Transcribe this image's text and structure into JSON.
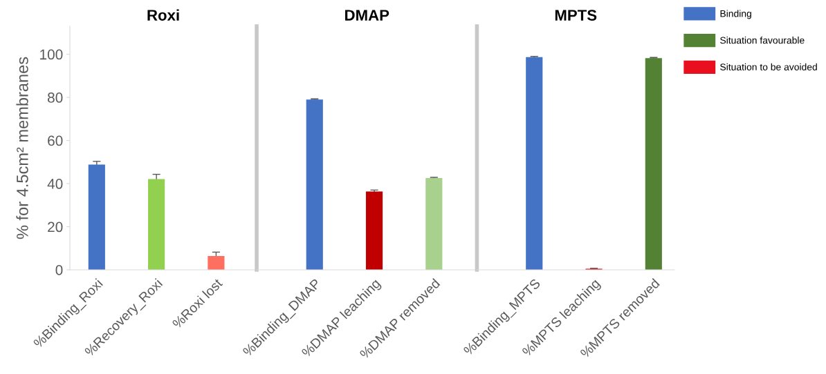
{
  "chart_data": [
    {
      "type": "bar",
      "title": "Roxi",
      "ylabel": "% for 4.5cm² membranes",
      "categories": [
        "%Binding_Roxi",
        "%Recovery_Roxi",
        "%Roxi lost"
      ],
      "ylim": [
        0,
        113
      ],
      "yticks": [
        0,
        20,
        40,
        60,
        80,
        100
      ],
      "grid": false,
      "legend": false,
      "series": [
        {
          "color": "#4472c4",
          "values": [
            48.8,
            null,
            null
          ],
          "errors": [
            1.5,
            null,
            null
          ]
        },
        {
          "color": "#92d050",
          "values": [
            null,
            42.1,
            null
          ],
          "errors": [
            null,
            2.2,
            null
          ]
        },
        {
          "color": "#ff6f61",
          "values": [
            null,
            null,
            6.4
          ],
          "errors": [
            null,
            null,
            1.8
          ]
        }
      ]
    },
    {
      "type": "bar",
      "title": "DMAP",
      "categories": [
        "%Binding_DMAP",
        "%DMAP leaching",
        "%DMAP removed"
      ],
      "ylim": [
        0,
        113
      ],
      "yticks": [
        0,
        20,
        40,
        60,
        80,
        100
      ],
      "tick_labels": "x",
      "grid": false,
      "legend": false,
      "series": [
        {
          "color": "#4472c4",
          "values": [
            79.0,
            null,
            null
          ],
          "errors": [
            0.3,
            null,
            null
          ]
        },
        {
          "color": "#a9d18e",
          "values": [
            null,
            null,
            42.6
          ],
          "errors": [
            null,
            null,
            0.3
          ]
        },
        {
          "color": "#c00000",
          "values": [
            null,
            36.3,
            null
          ],
          "errors": [
            null,
            0.7,
            null
          ]
        }
      ]
    },
    {
      "type": "bar",
      "title": "MPTS",
      "categories": [
        "%Binding_MPTS",
        "%MPTS leaching",
        "%MPTS removed"
      ],
      "ylim": [
        0,
        113
      ],
      "yticks": [
        0,
        20,
        40,
        60,
        80,
        100
      ],
      "tick_labels": "x",
      "grid": false,
      "legend": "right",
      "series": [
        {
          "name": "Binding",
          "color": "#4472c4",
          "values": [
            98.7,
            null,
            null
          ],
          "errors": [
            0.3,
            null,
            null
          ]
        },
        {
          "name": "Situation favourable",
          "color": "#548235",
          "values": [
            null,
            null,
            98.2
          ],
          "errors": [
            null,
            null,
            0.3
          ]
        },
        {
          "name": "Situation to be avoided",
          "color": "#e8101e",
          "values": [
            null,
            0.5,
            null
          ],
          "errors": [
            null,
            0.2,
            null
          ]
        }
      ]
    }
  ]
}
